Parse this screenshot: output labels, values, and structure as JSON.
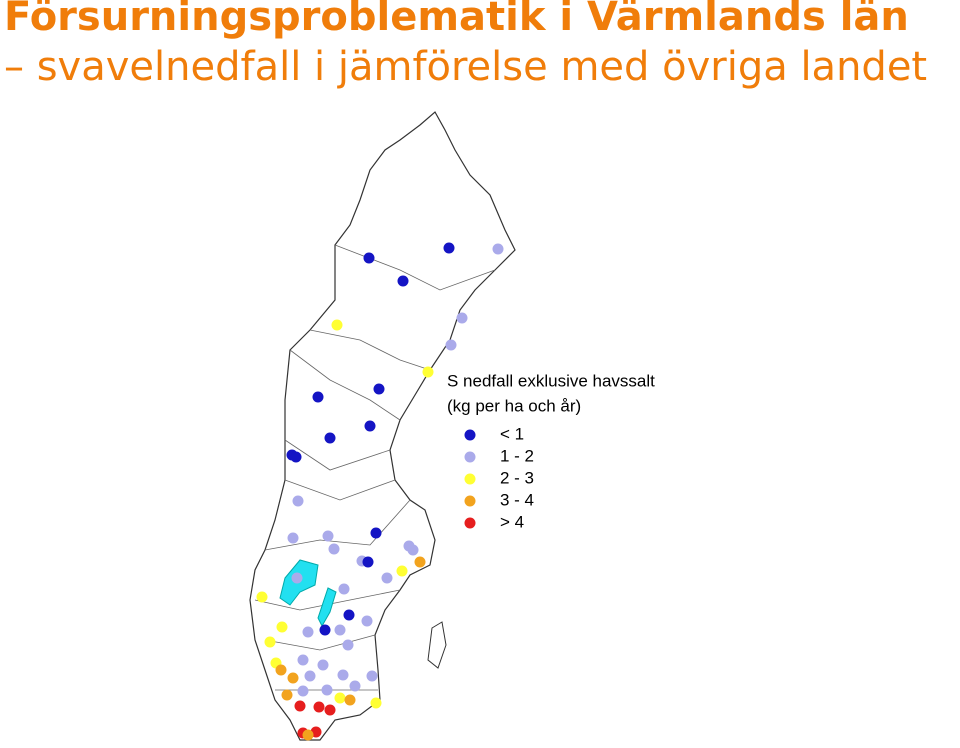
{
  "header": {
    "title": "Försurningsproblematik i Värmlands län",
    "subtitle": "– svavelnedfall i jämförelse med övriga landet"
  },
  "legend": {
    "title": "S nedfall exklusive havssalt",
    "unit": "(kg per ha och år)",
    "items": [
      {
        "label": "< 1",
        "color": "#1414c4"
      },
      {
        "label": "1 - 2",
        "color": "#aaaaea"
      },
      {
        "label": "2 - 3",
        "color": "#ffff33"
      },
      {
        "label": "3 - 4",
        "color": "#f2a31e"
      },
      {
        "label": "> 4",
        "color": "#e61e1e"
      }
    ]
  }
}
